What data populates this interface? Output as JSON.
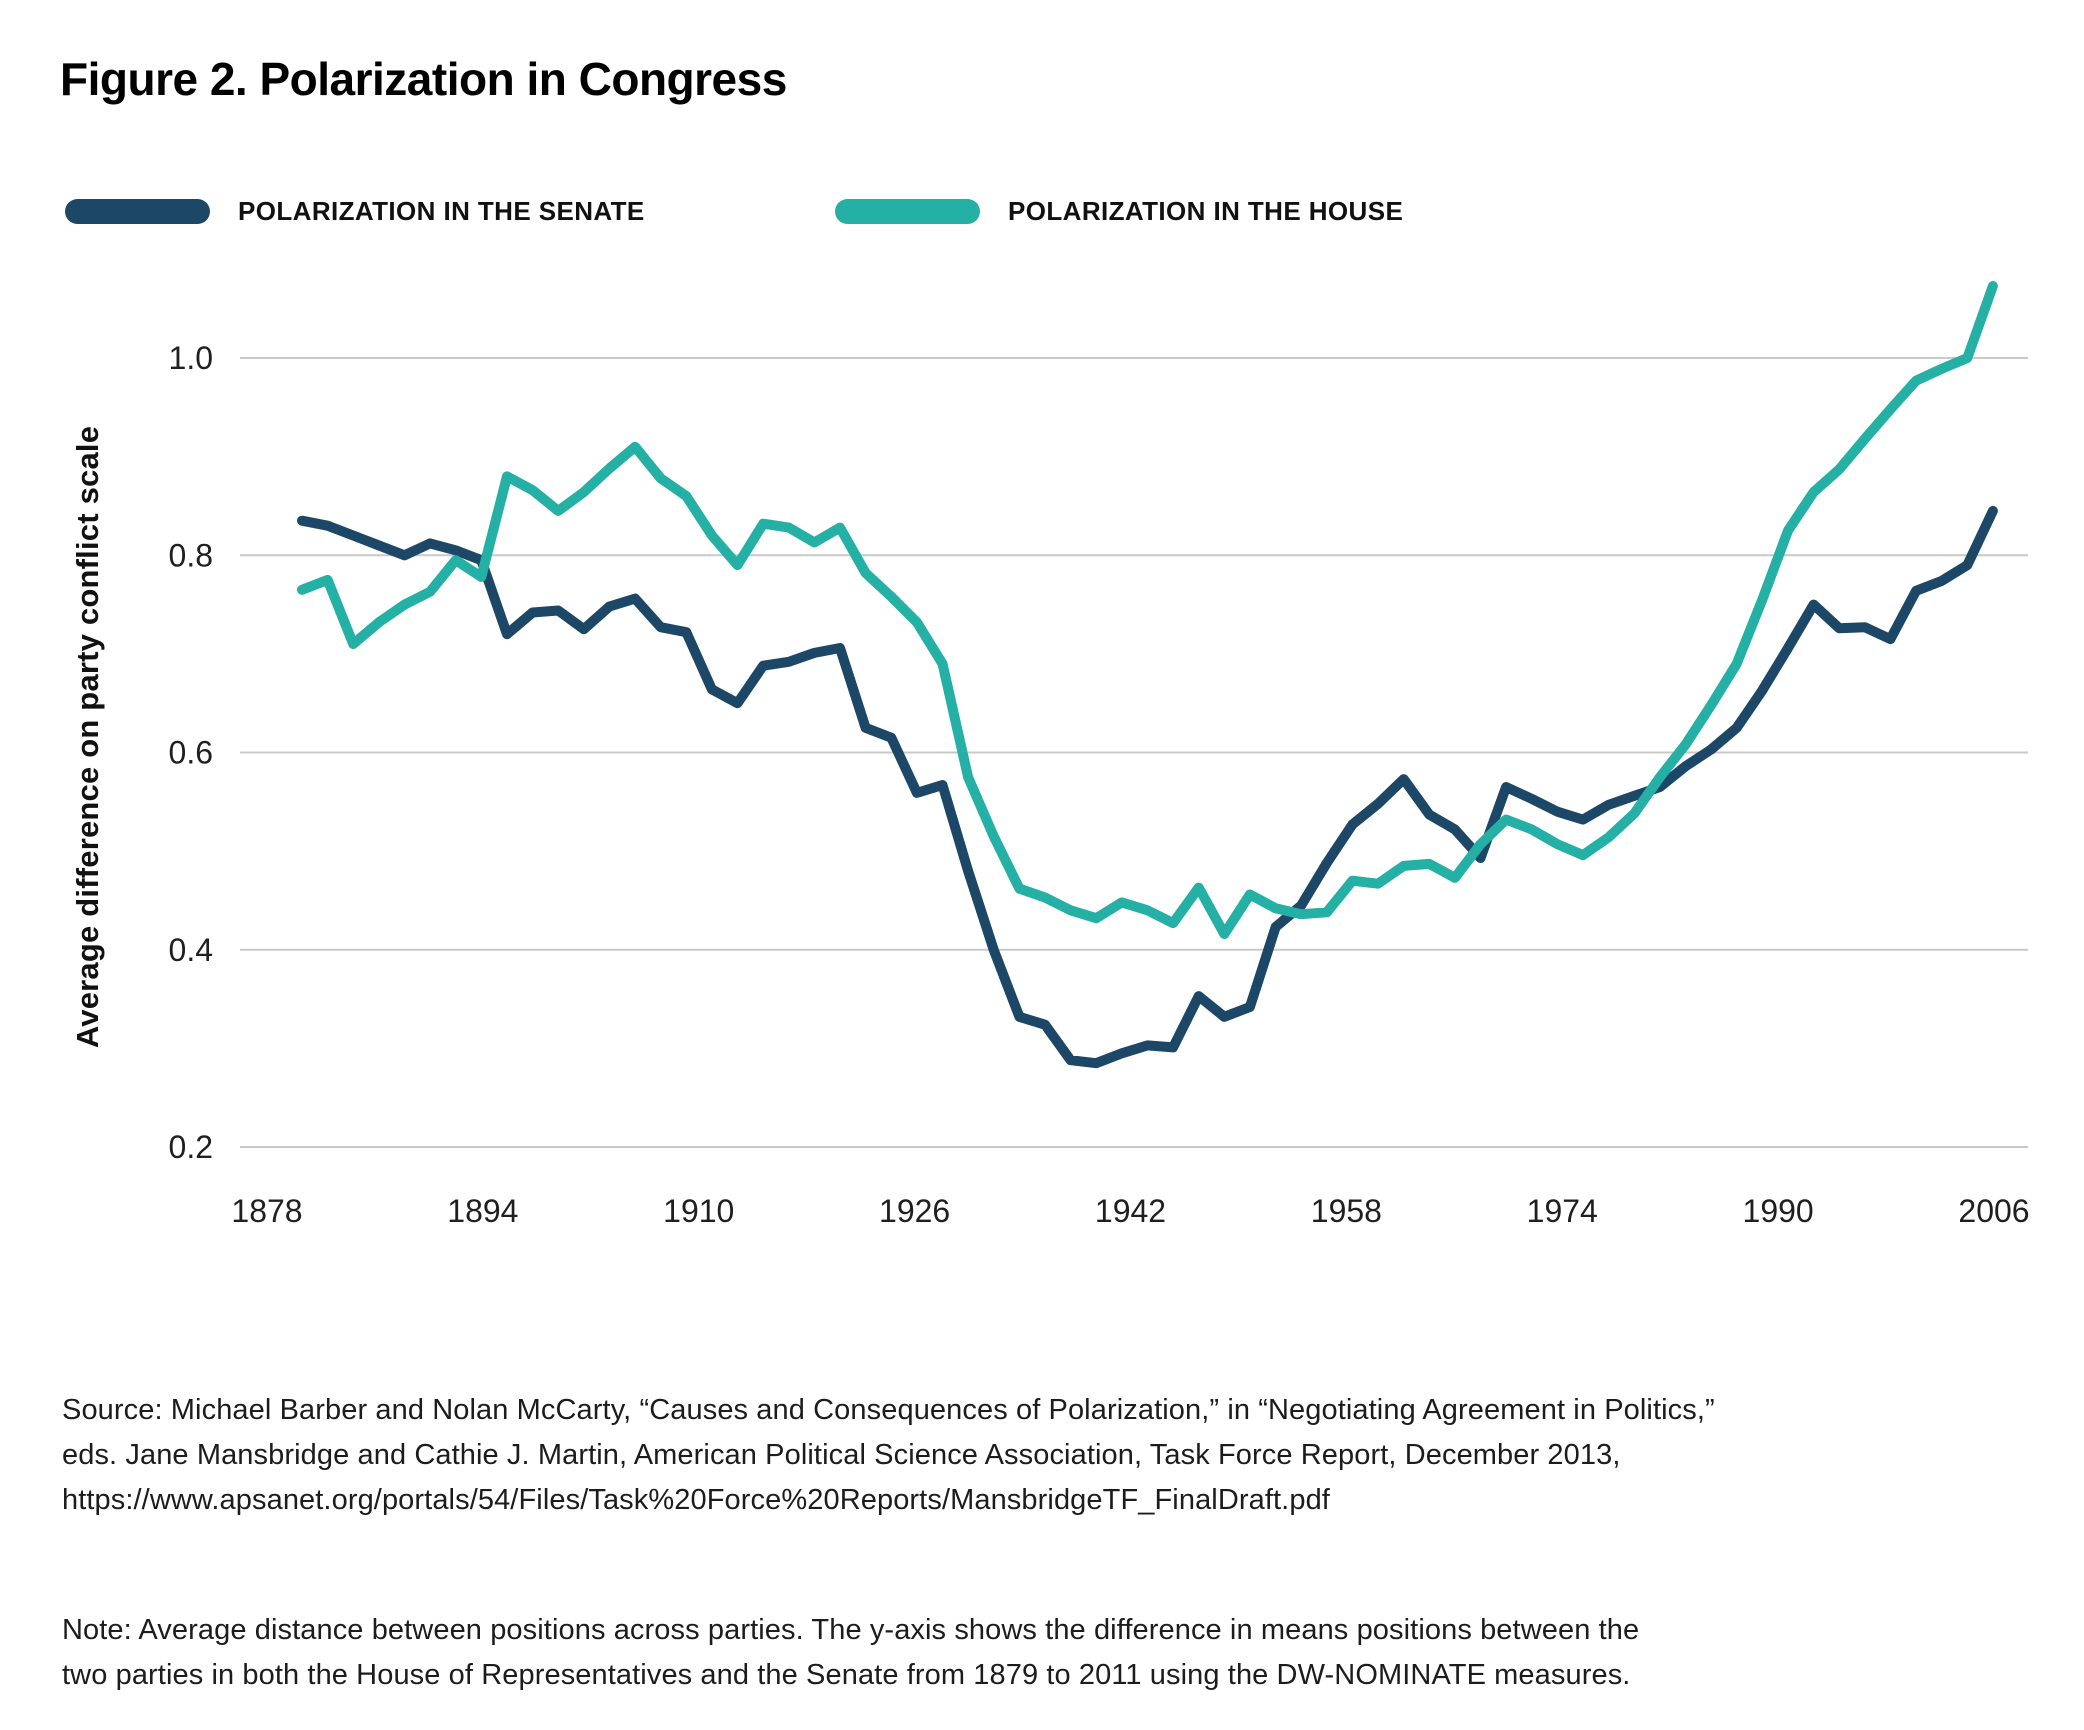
{
  "title": "Figure 2. Polarization in Congress",
  "legend": [
    {
      "label": "POLARIZATION IN THE SENATE",
      "series": "senate"
    },
    {
      "label": "POLARIZATION IN THE HOUSE",
      "series": "house"
    }
  ],
  "colors": {
    "senate": "#1d4767",
    "house": "#24b0a4",
    "gridline": "#c9c9c9",
    "text": "#1f1f1f"
  },
  "chart_data": {
    "type": "line",
    "title": "Figure 2. Polarization in Congress",
    "xlabel": "",
    "ylabel": "Average difference on party conflict scale",
    "grid": true,
    "legend_position": "top",
    "ylim": [
      0.2,
      1.08
    ],
    "yticks": [
      {
        "label": "1.0",
        "value": 1.0
      },
      {
        "label": "0.8",
        "value": 0.8
      },
      {
        "label": "0.6",
        "value": 0.6
      },
      {
        "label": "0.4",
        "value": 0.4
      },
      {
        "label": "0.2",
        "value": 0.2
      }
    ],
    "xticks": [
      1878,
      1894,
      1910,
      1926,
      1942,
      1958,
      1974,
      1990,
      2006
    ],
    "x": [
      1879,
      1881,
      1883,
      1885,
      1887,
      1889,
      1891,
      1893,
      1895,
      1897,
      1899,
      1901,
      1903,
      1905,
      1907,
      1909,
      1911,
      1913,
      1915,
      1917,
      1919,
      1921,
      1923,
      1925,
      1927,
      1929,
      1931,
      1933,
      1935,
      1937,
      1939,
      1941,
      1943,
      1945,
      1947,
      1949,
      1951,
      1953,
      1955,
      1957,
      1959,
      1961,
      1963,
      1965,
      1967,
      1969,
      1971,
      1973,
      1975,
      1977,
      1979,
      1981,
      1983,
      1985,
      1987,
      1989,
      1991,
      1993,
      1995,
      1997,
      1999,
      2001,
      2003,
      2005,
      2007,
      2009,
      2011
    ],
    "series": [
      {
        "name": "Polarization in the Senate",
        "color_key": "senate",
        "values": [
          0.835,
          0.83,
          0.82,
          0.81,
          0.8,
          0.812,
          0.805,
          0.795,
          0.72,
          0.742,
          0.744,
          0.725,
          0.748,
          0.756,
          0.727,
          0.722,
          0.664,
          0.65,
          0.688,
          0.692,
          0.701,
          0.706,
          0.625,
          0.615,
          0.559,
          0.567,
          0.48,
          0.4,
          0.332,
          0.324,
          0.288,
          0.285,
          0.295,
          0.303,
          0.301,
          0.353,
          0.332,
          0.342,
          0.423,
          0.445,
          0.488,
          0.527,
          0.548,
          0.573,
          0.537,
          0.522,
          0.493,
          0.565,
          0.553,
          0.54,
          0.532,
          0.547,
          0.556,
          0.565,
          0.586,
          0.603,
          0.625,
          0.663,
          0.706,
          0.75,
          0.726,
          0.727,
          0.715,
          0.764,
          0.774,
          0.79,
          0.845
        ]
      },
      {
        "name": "Polarization in the House",
        "color_key": "house",
        "values": [
          0.765,
          0.775,
          0.71,
          0.732,
          0.75,
          0.763,
          0.795,
          0.778,
          0.88,
          0.866,
          0.845,
          0.864,
          0.888,
          0.91,
          0.878,
          0.86,
          0.82,
          0.79,
          0.832,
          0.828,
          0.813,
          0.828,
          0.782,
          0.758,
          0.732,
          0.69,
          0.575,
          0.515,
          0.462,
          0.453,
          0.44,
          0.432,
          0.448,
          0.44,
          0.427,
          0.463,
          0.416,
          0.456,
          0.442,
          0.436,
          0.438,
          0.47,
          0.467,
          0.485,
          0.487,
          0.473,
          0.507,
          0.532,
          0.522,
          0.507,
          0.496,
          0.514,
          0.538,
          0.575,
          0.608,
          0.648,
          0.69,
          0.755,
          0.825,
          0.864,
          0.887,
          0.918,
          0.948,
          0.977,
          0.989,
          1.0,
          1.073
        ]
      }
    ]
  },
  "source": {
    "lines": [
      "Source: Michael Barber and Nolan McCarty, “Causes and Consequences of Polarization,” in “Negotiating Agreement in Politics,”",
      "eds. Jane Mansbridge and Cathie J. Martin, American Political Science Association, Task Force Report, December 2013,",
      "https://www.apsanet.org/portals/54/Files/Task%20Force%20Reports/MansbridgeTF_FinalDraft.pdf"
    ]
  },
  "note": {
    "lines": [
      "Note: Average distance between positions across parties. The y-axis shows the difference in means positions between the",
      "two parties in both the House of Representatives and the Senate from 1879 to 2011 using the DW-NOMINATE measures."
    ]
  }
}
